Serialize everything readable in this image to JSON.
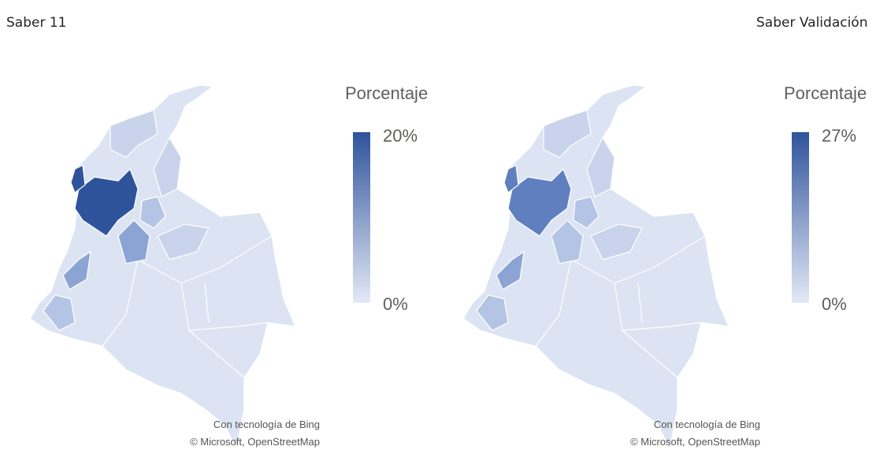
{
  "panels": [
    {
      "title": "Saber 11",
      "legend": {
        "title": "Porcentaje",
        "max": "20%",
        "min": "0%"
      },
      "attribution": [
        "Con tecnología de Bing",
        "© Microsoft, OpenStreetMap"
      ]
    },
    {
      "title": "Saber Validación",
      "legend": {
        "title": "Porcentaje",
        "max": "27%",
        "min": "0%"
      },
      "attribution": [
        "Con tecnología de Bing",
        "© Microsoft, OpenStreetMap"
      ]
    }
  ]
}
